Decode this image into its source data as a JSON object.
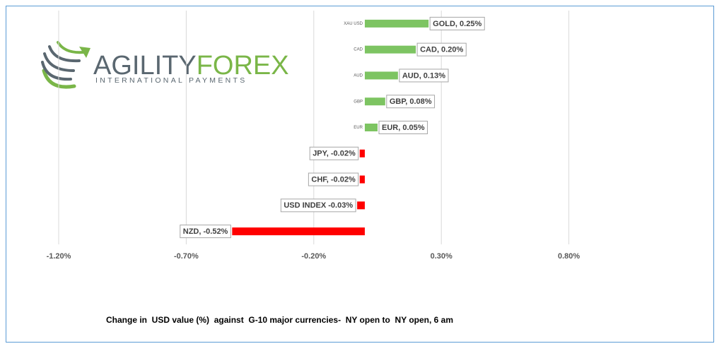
{
  "logo": {
    "agility": "AGILITY",
    "forex": "FOREX",
    "tagline": "INTERNATIONAL PAYMENTS"
  },
  "chart_data": {
    "type": "hbar",
    "title": "Change in  USD value (%)  against  G-10 major currencies-  NY open to  NY open, 6 am",
    "categories": [
      "XAU USD",
      "CAD",
      "AUD",
      "GBP",
      "EUR",
      null,
      null,
      null,
      null
    ],
    "values": [
      0.25,
      0.2,
      0.13,
      0.08,
      0.05,
      -0.02,
      -0.02,
      -0.03,
      -0.52
    ],
    "value_labels": [
      "GOLD, 0.25%",
      "CAD, 0.20%",
      "AUD, 0.13%",
      "GBP, 0.08%",
      "EUR, 0.05%",
      "JPY, -0.02%",
      "CHF, -0.02%",
      "USD INDEX -0.03%",
      "NZD, -0.52%"
    ],
    "positive_color": "#7dc462",
    "negative_color": "#ff0000",
    "xlim": [
      -1.2,
      1.3
    ],
    "xticks": [
      {
        "value": -1.2,
        "label": "-1.20%"
      },
      {
        "value": -0.7,
        "label": "-0.70%"
      },
      {
        "value": -0.2,
        "label": "-0.20%"
      },
      {
        "value": 0.3,
        "label": "0.30%"
      },
      {
        "value": 0.8,
        "label": "0.80%"
      }
    ],
    "grid": true
  }
}
